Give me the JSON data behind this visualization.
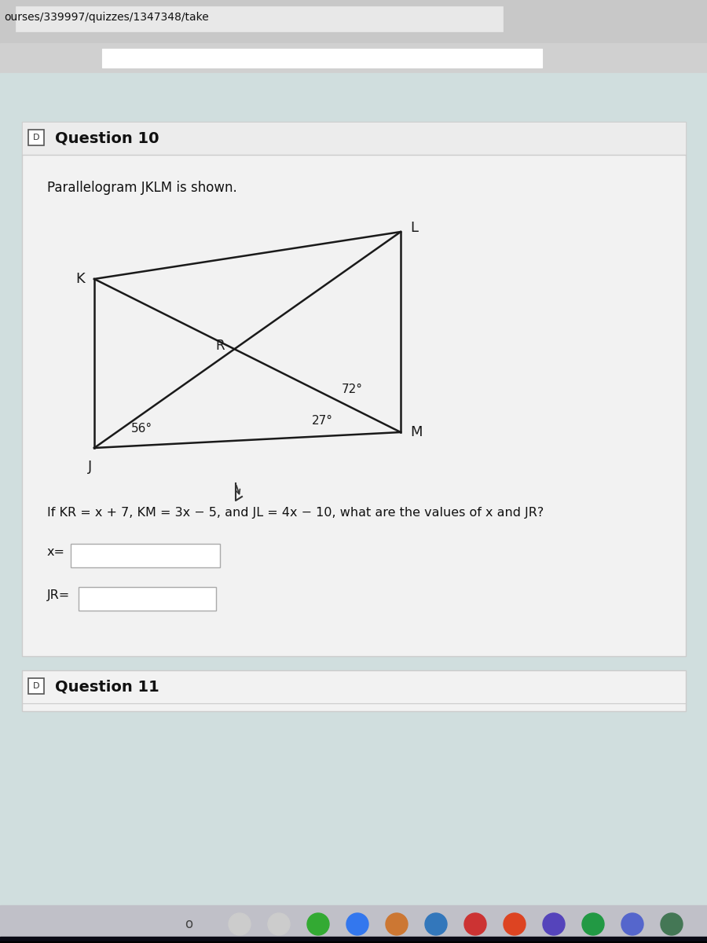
{
  "url_text": "ourses/339997/quizzes/1347348/take",
  "question10_label": "Question 10",
  "question11_label": "Question 11",
  "parallelogram_text": "Parallelogram JKLM is shown.",
  "angle1": "72°",
  "angle2": "27°",
  "angle3": "56°",
  "label_K": "K",
  "label_L": "L",
  "label_M": "M",
  "label_J": "J",
  "label_R": "R",
  "problem_text": "If KR = x + 7, KM = 3x − 5, and JL = 4x − 10, what are the values of x and JR?",
  "input_label1": "x=",
  "input_label2": "JR=",
  "bg_color_top": "#c8d8d8",
  "bg_color": "#d0dede",
  "card_color": "#f2f2f2",
  "header_color": "#ececec",
  "line_color": "#1a1a1a",
  "text_color": "#111111",
  "taskbar_color": "#c0c0c8",
  "taskbar_dark_color": "#0a0a15",
  "input_box_color": "#ffffff",
  "input_box_border": "#aaaaaa",
  "url_bar_bg": "#d4d4d4",
  "url_input_bg": "#e8e8e8"
}
